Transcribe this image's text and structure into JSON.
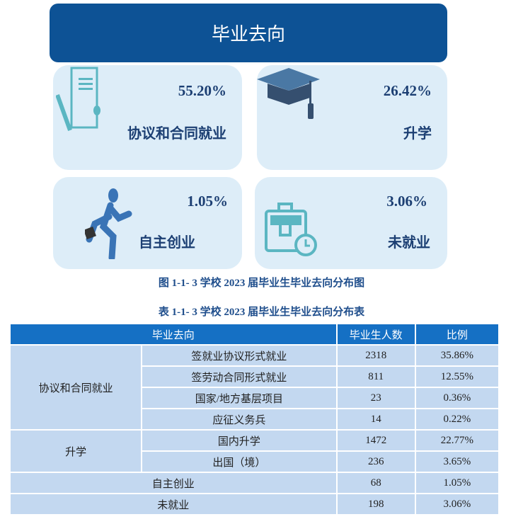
{
  "banner": {
    "title": "毕业去向"
  },
  "cards": [
    {
      "percent": "55.20%",
      "label": "协议和合同就业",
      "icon": "contract-pen-icon"
    },
    {
      "percent": "26.42%",
      "label": "升学",
      "icon": "graduation-cap-icon"
    },
    {
      "percent": "1.05%",
      "label": "自主创业",
      "icon": "running-man-briefcase-icon"
    },
    {
      "percent": "3.06%",
      "label": "未就业",
      "icon": "briefcase-clock-icon"
    }
  ],
  "figure_caption": "图 1-1- 3  学校 2023 届毕业生毕业去向分布图",
  "table_caption": "表 1-1- 3  学校 2023 届毕业生毕业去向分布表",
  "table": {
    "headers": [
      "毕业去向",
      "毕业生人数",
      "比例"
    ],
    "groups": [
      "协议和合同就业",
      "升学"
    ],
    "rows": [
      {
        "item": "签就业协议形式就业",
        "count": "2318",
        "ratio": "35.86%"
      },
      {
        "item": "签劳动合同形式就业",
        "count": "811",
        "ratio": "12.55%"
      },
      {
        "item": "国家/地方基层项目",
        "count": "23",
        "ratio": "0.36%"
      },
      {
        "item": "应征义务兵",
        "count": "14",
        "ratio": "0.22%"
      },
      {
        "item": "国内升学",
        "count": "1472",
        "ratio": "22.77%"
      },
      {
        "item": "出国（境）",
        "count": "236",
        "ratio": "3.65%"
      },
      {
        "item": "自主创业",
        "count": "68",
        "ratio": "1.05%"
      },
      {
        "item": "未就业",
        "count": "198",
        "ratio": "3.06%"
      }
    ]
  }
}
